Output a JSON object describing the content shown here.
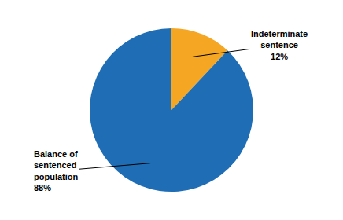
{
  "chart_data": {
    "type": "pie",
    "values": [
      12,
      88
    ],
    "colors": [
      "#F5A623",
      "#1F6EB5"
    ],
    "annotations": [
      "Indeterminate\nsentence\n12%",
      "Balance of\nsentenced\npopulation\n88%"
    ]
  }
}
